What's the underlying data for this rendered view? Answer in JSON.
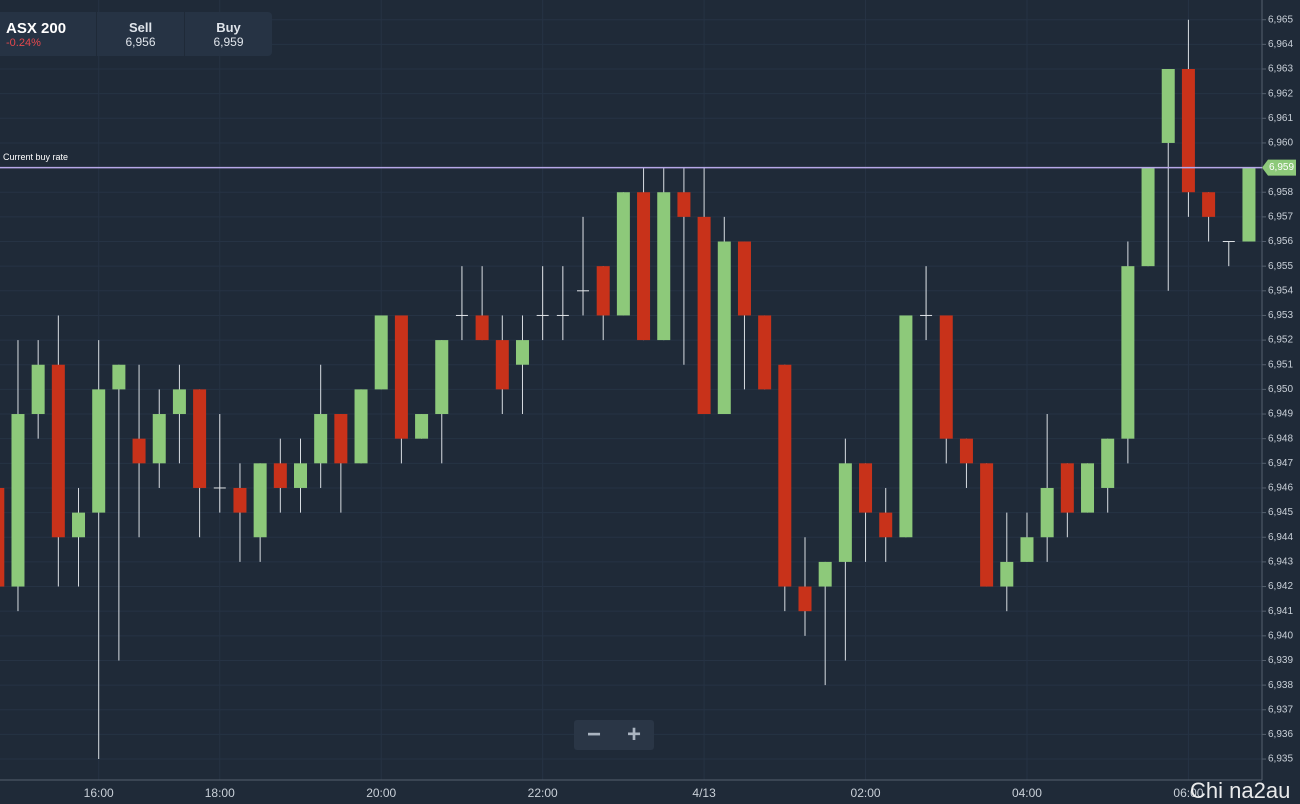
{
  "header": {
    "instrument": "ASX 200",
    "change": "-0.24%",
    "sell_label": "Sell",
    "sell": "6,956",
    "buy_label": "Buy",
    "buy": "6,959"
  },
  "watermark": "Chi na2au",
  "chart_data": {
    "type": "candlestick",
    "categories": [
      null,
      null,
      null,
      null,
      null,
      "16:00",
      null,
      null,
      null,
      null,
      null,
      "18:00",
      null,
      null,
      null,
      null,
      null,
      null,
      null,
      "20:00",
      null,
      null,
      null,
      null,
      null,
      null,
      null,
      "22:00",
      null,
      null,
      null,
      null,
      null,
      null,
      null,
      "4/13",
      null,
      null,
      null,
      null,
      null,
      null,
      null,
      "02:00",
      null,
      null,
      null,
      null,
      null,
      null,
      null,
      "04:00",
      null,
      null,
      null,
      null,
      null,
      null,
      null,
      "06:00",
      null,
      null,
      null
    ],
    "series": [
      {
        "up_color": "#8dc97a",
        "down_color": "#c8321a",
        "open": [
          6946,
          6942,
          6949,
          6951,
          6944,
          6945,
          6950,
          6948,
          6947,
          6949,
          6950,
          6946,
          6946,
          6944,
          6947,
          6946,
          6947,
          6949,
          6947,
          6950,
          6953,
          6948,
          6949,
          6953,
          6953,
          6952,
          6951,
          6953,
          6953,
          6954,
          6955,
          6953,
          6958,
          6952,
          6958,
          6957,
          6949,
          6956,
          6953,
          6951,
          6942,
          6942,
          6943,
          6947,
          6945,
          6944,
          6953,
          6953,
          6948,
          6947,
          6942,
          6943,
          6944,
          6947,
          6945,
          6946,
          6948,
          6955,
          6960,
          6963,
          6958,
          6956,
          6956
        ],
        "high": [
          6946,
          6952,
          6952,
          6953,
          6946,
          6952,
          6951,
          6951,
          6950,
          6951,
          6950,
          6949,
          6947,
          6947,
          6948,
          6948,
          6951,
          6949,
          6950,
          6953,
          6953,
          6949,
          6952,
          6955,
          6955,
          6953,
          6953,
          6955,
          6955,
          6957,
          6955,
          6958,
          6959,
          6959,
          6959,
          6959,
          6957,
          6956,
          6953,
          6951,
          6944,
          6943,
          6948,
          6947,
          6946,
          6953,
          6955,
          6953,
          6948,
          6947,
          6945,
          6945,
          6949,
          6947,
          6947,
          6948,
          6956,
          6959,
          6963,
          6965,
          6958,
          6956,
          6959
        ],
        "low": [
          6942,
          6941,
          6948,
          6942,
          6942,
          6935,
          6939,
          6944,
          6946,
          6947,
          6944,
          6945,
          6943,
          6943,
          6945,
          6945,
          6946,
          6945,
          6947,
          6950,
          6947,
          6948,
          6947,
          6952,
          6952,
          6949,
          6949,
          6952,
          6952,
          6953,
          6952,
          6953,
          6952,
          6952,
          6951,
          6949,
          6949,
          6950,
          6950,
          6941,
          6940,
          6938,
          6939,
          6943,
          6943,
          6944,
          6952,
          6947,
          6946,
          6942,
          6941,
          6943,
          6943,
          6944,
          6945,
          6945,
          6947,
          6955,
          6954,
          6957,
          6956,
          6955,
          6956
        ],
        "close": [
          6942,
          6949,
          6951,
          6944,
          6945,
          6950,
          6951,
          6947,
          6949,
          6950,
          6946,
          6946,
          6945,
          6947,
          6946,
          6947,
          6949,
          6947,
          6950,
          6953,
          6948,
          6949,
          6952,
          6953,
          6952,
          6950,
          6952,
          6953,
          6953,
          6954,
          6953,
          6958,
          6952,
          6958,
          6957,
          6949,
          6956,
          6953,
          6950,
          6942,
          6941,
          6943,
          6947,
          6945,
          6944,
          6953,
          6953,
          6948,
          6947,
          6942,
          6943,
          6944,
          6946,
          6945,
          6947,
          6948,
          6955,
          6959,
          6963,
          6958,
          6957,
          6956,
          6959
        ]
      }
    ],
    "ylim": [
      6934.15,
      6965.8
    ],
    "yticks": [
      {
        "value": 6935,
        "label": "6,935"
      },
      {
        "value": 6936,
        "label": "6,936"
      },
      {
        "value": 6937,
        "label": "6,937"
      },
      {
        "value": 6938,
        "label": "6,938"
      },
      {
        "value": 6939,
        "label": "6,939"
      },
      {
        "value": 6940,
        "label": "6,940"
      },
      {
        "value": 6941,
        "label": "6,941"
      },
      {
        "value": 6942,
        "label": "6,942"
      },
      {
        "value": 6943,
        "label": "6,943"
      },
      {
        "value": 6944,
        "label": "6,944"
      },
      {
        "value": 6945,
        "label": "6,945"
      },
      {
        "value": 6946,
        "label": "6,946"
      },
      {
        "value": 6947,
        "label": "6,947"
      },
      {
        "value": 6948,
        "label": "6,948"
      },
      {
        "value": 6949,
        "label": "6,949"
      },
      {
        "value": 6950,
        "label": "6,950"
      },
      {
        "value": 6951,
        "label": "6,951"
      },
      {
        "value": 6952,
        "label": "6,952"
      },
      {
        "value": 6953,
        "label": "6,953"
      },
      {
        "value": 6954,
        "label": "6,954"
      },
      {
        "value": 6955,
        "label": "6,955"
      },
      {
        "value": 6956,
        "label": "6,956"
      },
      {
        "value": 6957,
        "label": "6,957"
      },
      {
        "value": 6958,
        "label": "6,958"
      },
      {
        "value": 6959,
        "label": "6,959"
      },
      {
        "value": 6960,
        "label": "6,960"
      },
      {
        "value": 6961,
        "label": "6,961"
      },
      {
        "value": 6962,
        "label": "6,962"
      },
      {
        "value": 6963,
        "label": "6,963"
      },
      {
        "value": 6964,
        "label": "6,964"
      },
      {
        "value": 6965,
        "label": "6,965"
      }
    ],
    "grid": true,
    "current_rate": {
      "label": "Current buy rate",
      "value": 6959,
      "value_label": "6,959",
      "color": "#b7a8e8",
      "badge_color": "#8dc97a"
    }
  }
}
